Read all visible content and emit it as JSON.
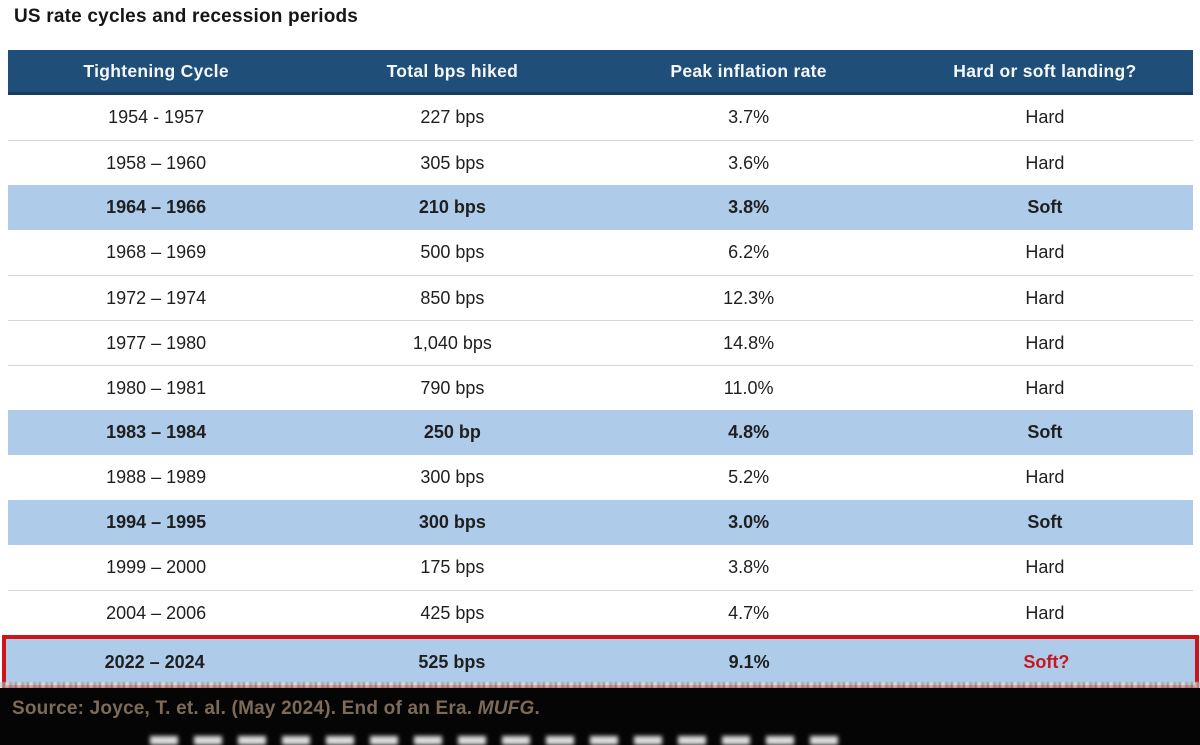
{
  "chart_data": {
    "type": "table",
    "title": "US rate cycles and recession periods",
    "columns": [
      "Tightening Cycle",
      "Total bps hiked",
      "Peak inflation rate",
      "Hard or soft landing?"
    ],
    "rows": [
      {
        "tightening_cycle": "1954 - 1957",
        "total_bps_hiked": "227 bps",
        "peak_inflation_rate": "3.7%",
        "landing": "Hard",
        "highlight": false,
        "red_outline": false,
        "landing_red": false
      },
      {
        "tightening_cycle": "1958 – 1960",
        "total_bps_hiked": "305 bps",
        "peak_inflation_rate": "3.6%",
        "landing": "Hard",
        "highlight": false,
        "red_outline": false,
        "landing_red": false
      },
      {
        "tightening_cycle": "1964 – 1966",
        "total_bps_hiked": "210 bps",
        "peak_inflation_rate": "3.8%",
        "landing": "Soft",
        "highlight": true,
        "red_outline": false,
        "landing_red": false
      },
      {
        "tightening_cycle": "1968 – 1969",
        "total_bps_hiked": "500 bps",
        "peak_inflation_rate": "6.2%",
        "landing": "Hard",
        "highlight": false,
        "red_outline": false,
        "landing_red": false
      },
      {
        "tightening_cycle": "1972 – 1974",
        "total_bps_hiked": "850 bps",
        "peak_inflation_rate": "12.3%",
        "landing": "Hard",
        "highlight": false,
        "red_outline": false,
        "landing_red": false
      },
      {
        "tightening_cycle": "1977 – 1980",
        "total_bps_hiked": "1,040 bps",
        "peak_inflation_rate": "14.8%",
        "landing": "Hard",
        "highlight": false,
        "red_outline": false,
        "landing_red": false
      },
      {
        "tightening_cycle": "1980 – 1981",
        "total_bps_hiked": "790 bps",
        "peak_inflation_rate": "11.0%",
        "landing": "Hard",
        "highlight": false,
        "red_outline": false,
        "landing_red": false
      },
      {
        "tightening_cycle": "1983 – 1984",
        "total_bps_hiked": "250 bp",
        "peak_inflation_rate": "4.8%",
        "landing": "Soft",
        "highlight": true,
        "red_outline": false,
        "landing_red": false
      },
      {
        "tightening_cycle": "1988 – 1989",
        "total_bps_hiked": "300 bps",
        "peak_inflation_rate": "5.2%",
        "landing": "Hard",
        "highlight": false,
        "red_outline": false,
        "landing_red": false
      },
      {
        "tightening_cycle": "1994 – 1995",
        "total_bps_hiked": "300 bps",
        "peak_inflation_rate": "3.0%",
        "landing": "Soft",
        "highlight": true,
        "red_outline": false,
        "landing_red": false
      },
      {
        "tightening_cycle": "1999 – 2000",
        "total_bps_hiked": "175 bps",
        "peak_inflation_rate": "3.8%",
        "landing": "Hard",
        "highlight": false,
        "red_outline": false,
        "landing_red": false
      },
      {
        "tightening_cycle": "2004 – 2006",
        "total_bps_hiked": "425 bps",
        "peak_inflation_rate": "4.7%",
        "landing": "Hard",
        "highlight": false,
        "red_outline": false,
        "landing_red": false
      },
      {
        "tightening_cycle": "2022 – 2024",
        "total_bps_hiked": "525 bps",
        "peak_inflation_rate": "9.1%",
        "landing": "Soft?",
        "highlight": true,
        "red_outline": true,
        "landing_red": true
      }
    ],
    "layout_hints": {
      "highlighted_row_style": "light-blue bold",
      "final_row_style": "red outline"
    }
  },
  "footer": {
    "source_prefix": "Source: Joyce, T. et. al. (May 2024). End of an Era. ",
    "source_publisher": "MUFG",
    "source_suffix": "."
  },
  "colors": {
    "header_bg": "#1f4e79",
    "header_text": "#f4f8fc",
    "highlight_row_bg": "#aecbe9",
    "outline_red": "#cd1418",
    "soft_question_text": "#c9161d",
    "row_separator": "#d7d7d7",
    "footer_bg": "#050505",
    "footer_text": "#7d6b55"
  }
}
